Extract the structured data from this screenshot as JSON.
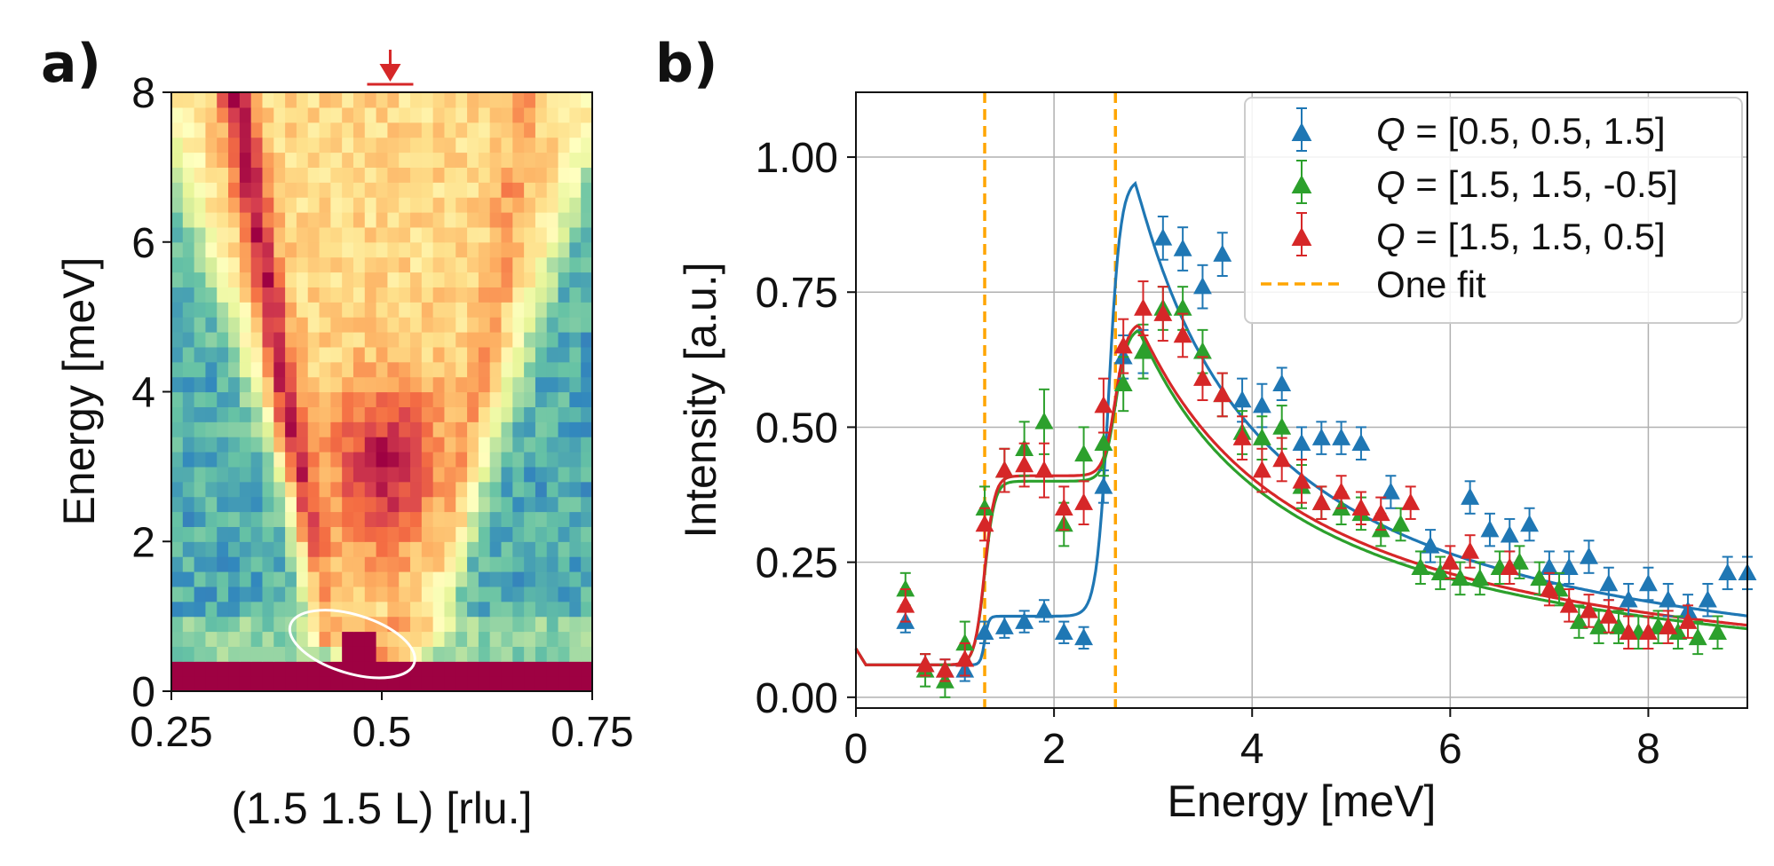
{
  "chart_data": [
    {
      "panel": "a)",
      "type": "heatmap",
      "xlabel": "(1.5 1.5 L) [rlu.]",
      "ylabel": "Energy [meV]",
      "xlim": [
        0.25,
        0.75
      ],
      "ylim": [
        0,
        8
      ],
      "xticks": [
        "0.25",
        "0.5",
        "0.75"
      ],
      "yticks": [
        "0",
        "2",
        "4",
        "6",
        "8"
      ],
      "colormap": [
        "#5e4fa2",
        "#3288bd",
        "#66c2a5",
        "#abdda4",
        "#e6f598",
        "#ffffbf",
        "#fee08b",
        "#fdae61",
        "#f46d43",
        "#d53e4f",
        "#9e0142"
      ],
      "marker_arrow_L": 0.51,
      "ellipse_center": {
        "L": 0.465,
        "E": 0.63
      },
      "cells": [
        {
          "E": 0.2,
          "Lmin": 0.25,
          "Lmax": 0.75,
          "v": 1.0
        },
        {
          "E": 0.6,
          "Lmin": 0.45,
          "Lmax": 0.49,
          "v": 1.0
        },
        {
          "E": 0.7,
          "Lmin": 0.43,
          "Lmax": 0.44,
          "v": 0.75
        },
        {
          "E": 2.0,
          "Lmin": 0.49,
          "Lmax": 0.51,
          "v": 0.8
        },
        {
          "E": 3.0,
          "Lmin": 0.47,
          "Lmax": 0.54,
          "v": 0.92
        }
      ]
    },
    {
      "panel": "b)",
      "type": "scatter",
      "xlabel": "Energy [meV]",
      "ylabel": "Intensity [a.u.]",
      "xlim": [
        0,
        9
      ],
      "ylim": [
        -0.02,
        1.12
      ],
      "xticks": [
        "0",
        "2",
        "4",
        "6",
        "8"
      ],
      "yticks": [
        "0.00",
        "0.25",
        "0.50",
        "0.75",
        "1.00"
      ],
      "grid": true,
      "legend_position": "top-right",
      "vlines": {
        "label": "One fit",
        "color": "#ffa500",
        "x": [
          1.3,
          2.62
        ]
      },
      "series": [
        {
          "name_prefix": "Q",
          "name_value": " = [0.5, 0.5, 1.5]",
          "color": "#1f77b4",
          "x": [
            0.5,
            0.7,
            0.9,
            1.1,
            1.3,
            1.5,
            1.7,
            1.9,
            2.1,
            2.3,
            2.5,
            2.7,
            2.9,
            3.1,
            3.3,
            3.5,
            3.7,
            3.9,
            4.1,
            4.3,
            4.5,
            4.7,
            4.9,
            5.1,
            5.4,
            5.8,
            6.2,
            6.4,
            6.6,
            6.8,
            7.0,
            7.2,
            7.4,
            7.6,
            7.8,
            8.0,
            8.2,
            8.4,
            8.6,
            8.8,
            9.0
          ],
          "y": [
            0.14,
            0.06,
            0.05,
            0.05,
            0.12,
            0.13,
            0.14,
            0.16,
            0.12,
            0.11,
            0.39,
            0.63,
            0.64,
            0.85,
            0.83,
            0.76,
            0.82,
            0.55,
            0.54,
            0.58,
            0.47,
            0.48,
            0.48,
            0.47,
            0.38,
            0.28,
            0.37,
            0.31,
            0.3,
            0.32,
            0.24,
            0.24,
            0.26,
            0.21,
            0.18,
            0.21,
            0.18,
            0.16,
            0.18,
            0.23,
            0.23
          ],
          "yerr": [
            0.02,
            0.02,
            0.02,
            0.02,
            0.02,
            0.02,
            0.02,
            0.02,
            0.02,
            0.02,
            0.03,
            0.04,
            0.04,
            0.04,
            0.04,
            0.04,
            0.04,
            0.04,
            0.04,
            0.03,
            0.03,
            0.03,
            0.03,
            0.03,
            0.03,
            0.03,
            0.03,
            0.03,
            0.03,
            0.03,
            0.03,
            0.03,
            0.03,
            0.03,
            0.03,
            0.03,
            0.03,
            0.03,
            0.03,
            0.03,
            0.03
          ],
          "fit": {
            "base": 0.06,
            "e1": 1.3,
            "p1": 0.15,
            "s1": 0.02,
            "e2": 2.55,
            "peak": 0.96,
            "s2": 0.06,
            "xmax": 2.82,
            "decay": 1.8
          }
        },
        {
          "name_prefix": "Q",
          "name_value": " = [1.5, 1.5, -0.5]",
          "color": "#2ca02c",
          "x": [
            0.5,
            0.7,
            0.9,
            1.1,
            1.3,
            1.5,
            1.7,
            1.9,
            2.1,
            2.3,
            2.5,
            2.7,
            2.9,
            3.1,
            3.3,
            3.5,
            3.7,
            3.9,
            4.1,
            4.3,
            4.5,
            4.7,
            4.9,
            5.1,
            5.3,
            5.5,
            5.7,
            5.9,
            6.1,
            6.3,
            6.5,
            6.7,
            6.9,
            7.1,
            7.3,
            7.5,
            7.7,
            7.9,
            8.1,
            8.3,
            8.5,
            8.7
          ],
          "y": [
            0.2,
            0.05,
            0.03,
            0.1,
            0.35,
            0.42,
            0.46,
            0.51,
            0.32,
            0.45,
            0.47,
            0.58,
            0.64,
            0.72,
            0.72,
            0.64,
            0.56,
            0.49,
            0.48,
            0.5,
            0.39,
            0.36,
            0.35,
            0.34,
            0.31,
            0.32,
            0.24,
            0.23,
            0.22,
            0.22,
            0.24,
            0.25,
            0.22,
            0.2,
            0.14,
            0.13,
            0.13,
            0.12,
            0.13,
            0.12,
            0.11,
            0.12
          ],
          "yerr": [
            0.03,
            0.03,
            0.03,
            0.04,
            0.04,
            0.04,
            0.05,
            0.06,
            0.04,
            0.05,
            0.06,
            0.05,
            0.05,
            0.04,
            0.04,
            0.04,
            0.04,
            0.04,
            0.04,
            0.04,
            0.04,
            0.03,
            0.03,
            0.03,
            0.03,
            0.03,
            0.03,
            0.03,
            0.03,
            0.03,
            0.03,
            0.03,
            0.03,
            0.03,
            0.03,
            0.03,
            0.03,
            0.03,
            0.03,
            0.03,
            0.03,
            0.03
          ],
          "fit": {
            "base": 0.06,
            "e1": 1.3,
            "p1": 0.4,
            "s1": 0.05,
            "e2": 2.62,
            "peak": 0.685,
            "s2": 0.06,
            "xmax": 2.85,
            "decay": 2.2
          }
        },
        {
          "name_prefix": "Q",
          "name_value": " = [1.5, 1.5, 0.5]",
          "color": "#d62728",
          "x": [
            0.5,
            0.7,
            0.9,
            1.1,
            1.3,
            1.5,
            1.7,
            1.9,
            2.1,
            2.3,
            2.5,
            2.7,
            2.9,
            3.1,
            3.3,
            3.5,
            3.7,
            3.9,
            4.1,
            4.3,
            4.5,
            4.7,
            4.9,
            5.1,
            5.3,
            5.6,
            6.0,
            6.2,
            6.6,
            7.0,
            7.2,
            7.4,
            7.6,
            7.8,
            8.0,
            8.2,
            8.4
          ],
          "y": [
            0.17,
            0.06,
            0.05,
            0.07,
            0.32,
            0.42,
            0.43,
            0.42,
            0.35,
            0.36,
            0.54,
            0.65,
            0.72,
            0.71,
            0.67,
            0.59,
            0.56,
            0.48,
            0.42,
            0.44,
            0.4,
            0.36,
            0.38,
            0.35,
            0.34,
            0.36,
            0.25,
            0.27,
            0.24,
            0.2,
            0.17,
            0.16,
            0.15,
            0.12,
            0.12,
            0.13,
            0.14
          ],
          "yerr": [
            0.03,
            0.02,
            0.02,
            0.03,
            0.03,
            0.04,
            0.04,
            0.05,
            0.04,
            0.04,
            0.05,
            0.05,
            0.05,
            0.05,
            0.04,
            0.04,
            0.04,
            0.04,
            0.04,
            0.04,
            0.04,
            0.03,
            0.03,
            0.03,
            0.03,
            0.03,
            0.03,
            0.03,
            0.03,
            0.03,
            0.03,
            0.03,
            0.03,
            0.03,
            0.03,
            0.03,
            0.03
          ],
          "fit": {
            "base": 0.06,
            "e1": 1.3,
            "p1": 0.41,
            "s1": 0.05,
            "e2": 2.62,
            "peak": 0.695,
            "s2": 0.06,
            "xmax": 2.85,
            "decay": 2.3
          }
        }
      ]
    }
  ]
}
